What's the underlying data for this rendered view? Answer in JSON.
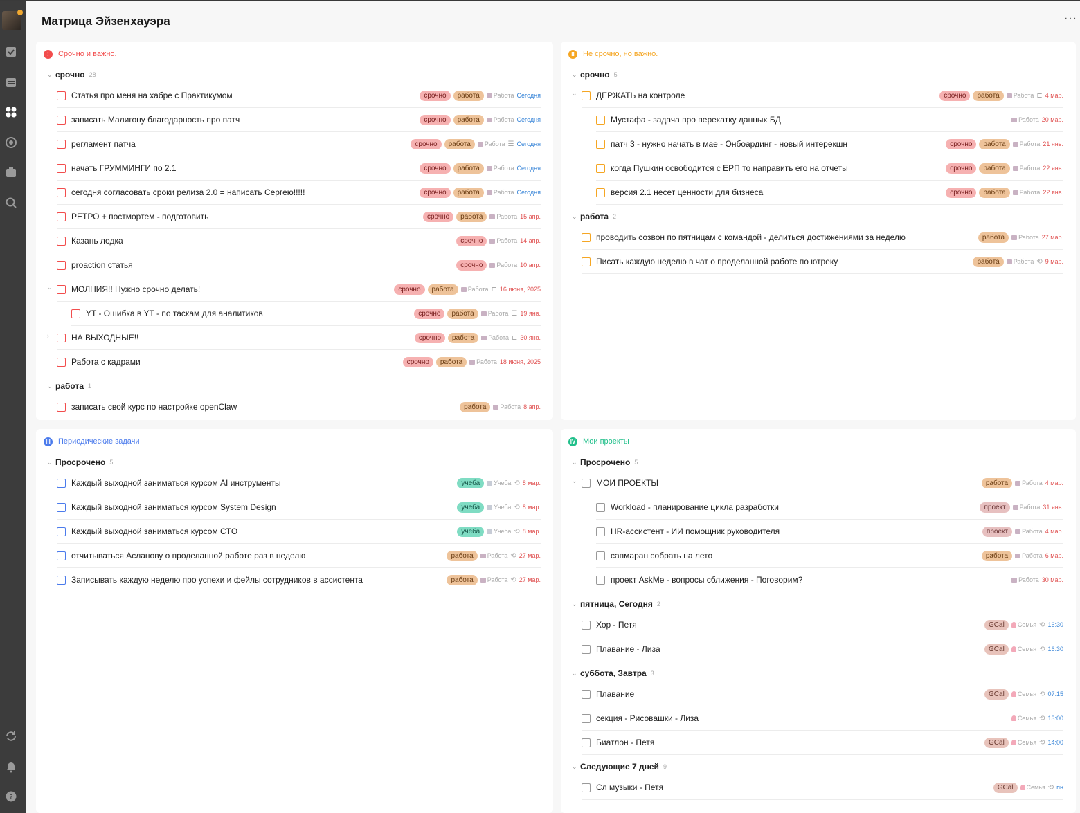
{
  "header": {
    "title": "Матрица Эйзенхауэра",
    "more": "···"
  },
  "sidebar": {
    "icons": [
      "avatar",
      "checkbox-icon",
      "calendar-icon",
      "matrix-icon",
      "focus-icon",
      "habit-icon",
      "search-icon",
      "sync-icon",
      "bell-icon",
      "help-icon"
    ]
  },
  "colors": {
    "q1": "#f24d4d",
    "q2": "#f5a623",
    "q3": "#4b7bec",
    "q4": "#20bf8a",
    "accent_date": "#e05050",
    "blue_date": "#3a86d8"
  },
  "q1": {
    "title": "Срочно и важно.",
    "badge": "!",
    "groups": [
      {
        "name": "срочно",
        "count": "28",
        "tasks": [
          {
            "title": "Статья про меня на хабре с Практикумом",
            "tags": [
              "срочно",
              "работа"
            ],
            "list": "Работа",
            "icon": "",
            "date": "Сегодня"
          },
          {
            "title": "записать Малигону благодарность про патч",
            "tags": [
              "срочно",
              "работа"
            ],
            "list": "Работа",
            "icon": "",
            "date": "Сегодня"
          },
          {
            "title": "регламент патча",
            "tags": [
              "срочно",
              "работа"
            ],
            "list": "Работа",
            "icon": "☰",
            "date": "Сегодня"
          },
          {
            "title": "начать ГРУММИНГИ по 2.1",
            "tags": [
              "срочно",
              "работа"
            ],
            "list": "Работа",
            "icon": "",
            "date": "Сегодня"
          },
          {
            "title": "сегодня согласовать сроки релиза 2.0 = написать Сергею!!!!!",
            "tags": [
              "срочно",
              "работа"
            ],
            "list": "Работа",
            "icon": "",
            "date": "Сегодня"
          },
          {
            "title": "РЕТРО + постмортем - подготовить",
            "tags": [
              "срочно",
              "работа"
            ],
            "list": "Работа",
            "icon": "",
            "date": "15 апр."
          },
          {
            "title": "Казань лодка",
            "tags": [
              "срочно"
            ],
            "list": "Работа",
            "icon": "",
            "date": "14 апр."
          },
          {
            "title": "proaction статья",
            "tags": [
              "срочно"
            ],
            "list": "Работа",
            "icon": "",
            "date": "10 апр."
          },
          {
            "title": "МОЛНИЯ!! Нужно срочно делать!",
            "tags": [
              "срочно",
              "работа"
            ],
            "list": "Работа",
            "icon": "⊏",
            "date": "16 июня, 2025"
          },
          {
            "title": "YT - Ошибка в YT - по таскам для аналитиков",
            "tags": [
              "срочно",
              "работа"
            ],
            "list": "Работа",
            "icon": "☰",
            "date": "19 янв."
          },
          {
            "title": "НА ВЫХОДНЫЕ!!",
            "tags": [
              "срочно",
              "работа"
            ],
            "list": "Работа",
            "icon": "⊏",
            "date": "30 янв."
          },
          {
            "title": "Работа с кадрами",
            "tags": [
              "срочно",
              "работа"
            ],
            "list": "Работа",
            "icon": "",
            "date": "18 июня, 2025"
          }
        ]
      },
      {
        "name": "работа",
        "count": "1",
        "tasks": [
          {
            "title": "записать свой курс по настройке openClaw",
            "tags": [
              "работа"
            ],
            "list": "Работа",
            "icon": "",
            "date": "8 апр."
          }
        ]
      }
    ]
  },
  "q2": {
    "title": "Не срочно, но важно.",
    "badge": "II",
    "groups": [
      {
        "name": "срочно",
        "count": "5",
        "tasks": [
          {
            "title": "ДЕРЖАТЬ на контроле",
            "tags": [
              "срочно",
              "работа"
            ],
            "list": "Работа",
            "icon": "⊏",
            "date": "4 мар."
          },
          {
            "title": "Мустафа - задача про перекатку данных БД",
            "tags": [],
            "list": "Работа",
            "icon": "",
            "date": "20 мар."
          },
          {
            "title": "патч 3 - нужно начать в мае - Онбоардинг - новый интерекшн",
            "tags": [
              "срочно",
              "работа"
            ],
            "list": "Работа",
            "icon": "",
            "date": "21 янв."
          },
          {
            "title": "когда Пушкин освободится с ЕРП то направить его на отчеты",
            "tags": [
              "срочно",
              "работа"
            ],
            "list": "Работа",
            "icon": "",
            "date": "22 янв."
          },
          {
            "title": "версия 2.1 несет ценности для бизнеса",
            "tags": [
              "срочно",
              "работа"
            ],
            "list": "Работа",
            "icon": "",
            "date": "22 янв."
          }
        ]
      },
      {
        "name": "работа",
        "count": "2",
        "tasks": [
          {
            "title": "проводить созвон по пятницам с командой - делиться достижениями за неделю",
            "tags": [
              "работа"
            ],
            "list": "Работа",
            "icon": "",
            "date": "27 мар."
          },
          {
            "title": "Писать каждую неделю в чат о проделанной работе по ютреку",
            "tags": [
              "работа"
            ],
            "list": "Работа",
            "icon": "⟲",
            "date": "9 мар."
          }
        ]
      }
    ]
  },
  "q3": {
    "title": "Периодические задачи",
    "badge": "III",
    "groups": [
      {
        "name": "Просрочено",
        "count": "5",
        "tasks": [
          {
            "title": "Каждый выходной заниматься курсом AI инструменты",
            "tags": [
              "учеба"
            ],
            "list": "Учеба",
            "icon": "⟲",
            "date": "8 мар."
          },
          {
            "title": "Каждый выходной заниматься курсом System Design",
            "tags": [
              "учеба"
            ],
            "list": "Учеба",
            "icon": "⟲",
            "date": "8 мар."
          },
          {
            "title": "Каждый выходной заниматься курсом CTO",
            "tags": [
              "учеба"
            ],
            "list": "Учеба",
            "icon": "⟲",
            "date": "8 мар."
          },
          {
            "title": "отчитываться Асланову о проделанной работе раз в неделю",
            "tags": [
              "работа"
            ],
            "list": "Работа",
            "icon": "⟲",
            "date": "27 мар."
          },
          {
            "title": "Записывать каждую неделю про успехи и фейлы сотрудников в ассистента",
            "tags": [
              "работа"
            ],
            "list": "Работа",
            "icon": "⟲",
            "date": "27 мар."
          }
        ]
      }
    ]
  },
  "q4": {
    "title": "Мои проекты",
    "badge": "IV",
    "groups": [
      {
        "name": "Просрочено",
        "count": "5",
        "tasks": [
          {
            "title": "МОИ ПРОЕКТЫ",
            "tags": [
              "работа"
            ],
            "list": "Работа",
            "icon": "",
            "date": "4 мар."
          },
          {
            "title": "Workload - планирование цикла разработки",
            "tags": [
              "проект"
            ],
            "list": "Работа",
            "icon": "",
            "date": "31 янв."
          },
          {
            "title": "HR-ассистент - ИИ помощник руководителя",
            "tags": [
              "проект"
            ],
            "list": "Работа",
            "icon": "",
            "date": "4 мар."
          },
          {
            "title": "сапмаран собрать на лето",
            "tags": [
              "работа"
            ],
            "list": "Работа",
            "icon": "",
            "date": "6 мар."
          },
          {
            "title": "проект AskMe - вопросы сближения - Поговорим?",
            "tags": [],
            "list": "Работа",
            "icon": "",
            "date": "30 мар."
          }
        ]
      },
      {
        "name": "пятница, Сегодня",
        "count": "2",
        "tasks": [
          {
            "title": "Хор - Петя",
            "tags": [
              "GCal"
            ],
            "list": "Семья",
            "icon": "⟲",
            "date": "16:30"
          },
          {
            "title": "Плавание - Лиза",
            "tags": [
              "GCal"
            ],
            "list": "Семья",
            "icon": "⟲",
            "date": "16:30"
          }
        ]
      },
      {
        "name": "суббота, Завтра",
        "count": "3",
        "tasks": [
          {
            "title": "Плавание",
            "tags": [
              "GCal"
            ],
            "list": "Семья",
            "icon": "⟲",
            "date": "07:15"
          },
          {
            "title": "секция - Рисовашки - Лиза",
            "tags": [],
            "list": "Семья",
            "icon": "⟲",
            "date": "13:00"
          },
          {
            "title": "Биатлон - Петя",
            "tags": [
              "GCal"
            ],
            "list": "Семья",
            "icon": "⟲",
            "date": "14:00"
          }
        ]
      },
      {
        "name": "Следующие 7 дней",
        "count": "9",
        "tasks": [
          {
            "title": "Сл музыки - Петя",
            "tags": [
              "GCal"
            ],
            "list": "Семья",
            "icon": "⟲",
            "date": "пн"
          }
        ]
      }
    ]
  }
}
